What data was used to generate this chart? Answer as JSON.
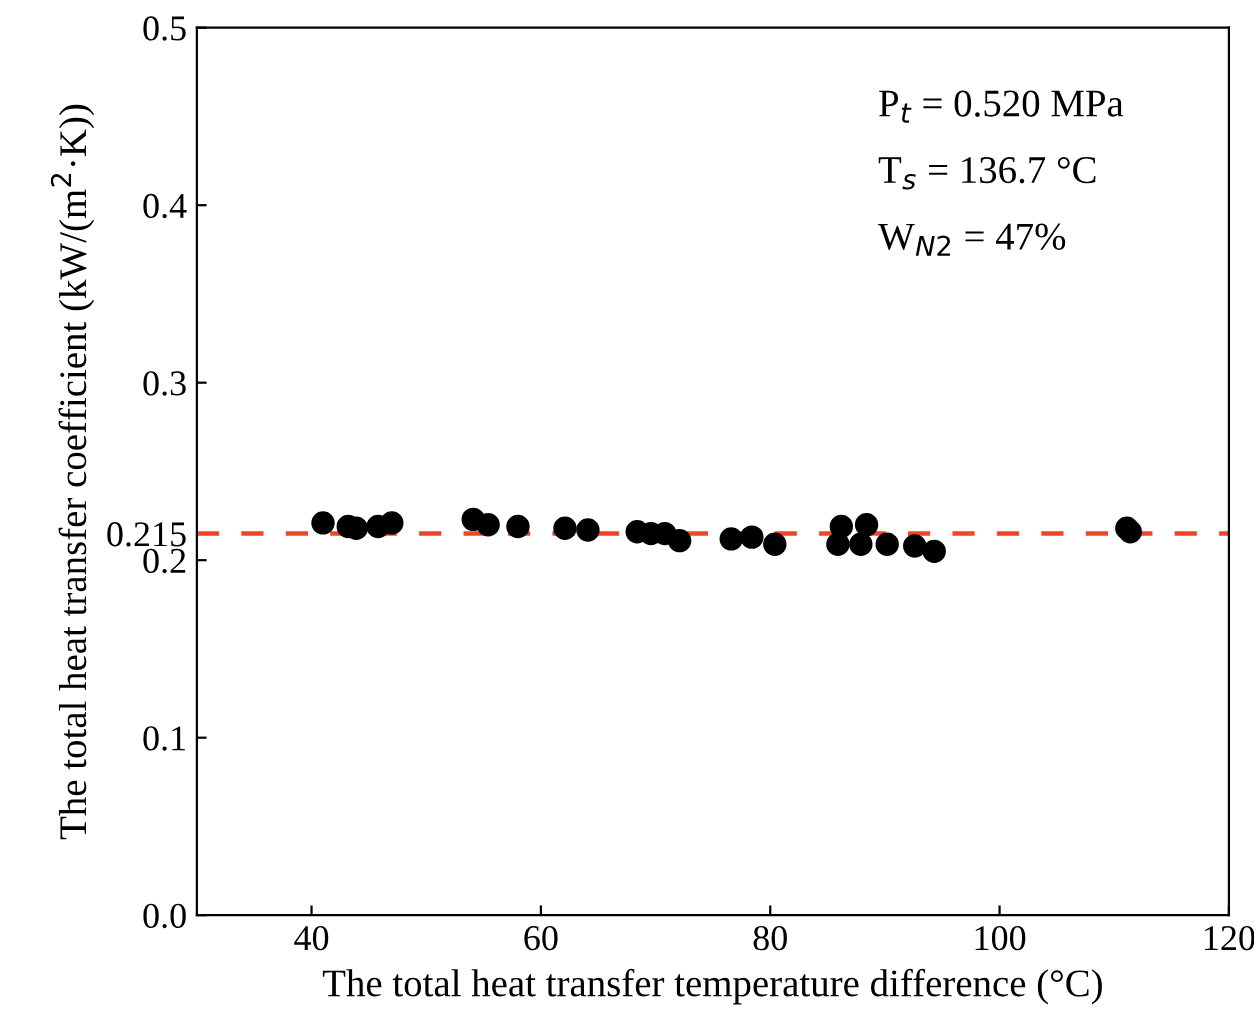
{
  "chart_data": {
    "type": "scatter",
    "xlabel": "The total heat transfer temperature difference (°C)",
    "ylabel": "The total heat transfer coefficient (kW/(m$^{2}$·K))",
    "xlim": [
      30,
      120
    ],
    "xticks": [
      40,
      60,
      80,
      100,
      120
    ],
    "ylim": [
      0,
      0.5
    ],
    "yticks": [
      {
        "value": 0,
        "label": "0.0"
      },
      0.1,
      {
        "value": 0.2,
        "label": "0.2"
      },
      0.215,
      0.3,
      0.4,
      0.5
    ],
    "marker": "circle",
    "grid": false,
    "legend": false,
    "series": [
      {
        "color": "#000000",
        "x": [
          41.0,
          43.2,
          43.9,
          45.8,
          47.0,
          54.1,
          55.4,
          58.0,
          62.1,
          64.1,
          68.4,
          69.6,
          70.8,
          72.1,
          76.6,
          78.4,
          80.4,
          86.2,
          85.9,
          88.4,
          87.9,
          90.2,
          92.6,
          94.3,
          111.1,
          111.4
        ],
        "values": [
          0.221,
          0.219,
          0.218,
          0.219,
          0.221,
          0.223,
          0.22,
          0.219,
          0.218,
          0.217,
          0.216,
          0.215,
          0.215,
          0.211,
          0.212,
          0.213,
          0.209,
          0.219,
          0.209,
          0.22,
          0.209,
          0.209,
          0.208,
          0.205,
          0.218,
          0.216
        ]
      }
    ],
    "ref_lines": [
      {
        "axis": "y",
        "value": 0.215,
        "color": "#f0452a",
        "line_style": "dashed"
      }
    ],
    "annotations": [
      "P$_{t}$ = 0.520 MPa",
      "T$_{s}$ = 136.7 °C",
      "W$_{N2}$ = 47%"
    ]
  }
}
